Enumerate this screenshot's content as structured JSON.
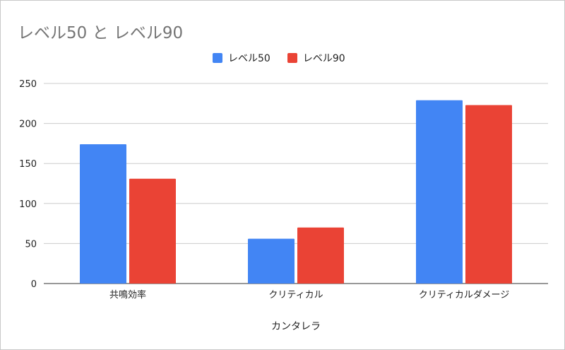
{
  "chart_data": {
    "type": "bar",
    "title": "レベル50 と レベル90",
    "xlabel": "カンタレラ",
    "ylabel": "",
    "categories": [
      "共鳴効率",
      "クリティカル",
      "クリティカルダメージ"
    ],
    "series": [
      {
        "name": "レベル50",
        "color": "#4285f4",
        "values": [
          174,
          56,
          229
        ]
      },
      {
        "name": "レベル90",
        "color": "#ea4335",
        "values": [
          131,
          70,
          223
        ]
      }
    ],
    "ylim": [
      0,
      250
    ],
    "yticks": [
      0,
      50,
      100,
      150,
      200,
      250
    ],
    "grid": true,
    "legend_position": "top-center"
  }
}
